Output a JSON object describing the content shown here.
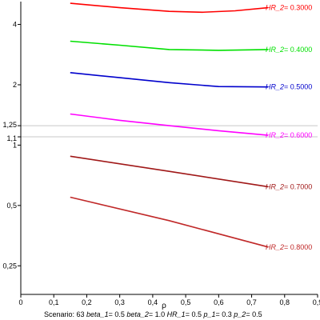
{
  "chart_data": {
    "type": "line",
    "xlabel": "ρ",
    "ylabel": "",
    "xlim": [
      0,
      0.9
    ],
    "ylim_log": [
      0.18,
      5.2
    ],
    "y_scale": "log",
    "x_ticks": [
      0,
      0.1,
      0.2,
      0.3,
      0.4,
      0.5,
      0.6,
      0.7,
      0.8,
      0.9
    ],
    "x_tick_labels": [
      "0",
      "0,1",
      "0,2",
      "0,3",
      "0,4",
      "0,5",
      "0,6",
      "0,7",
      "0,8",
      "0,9"
    ],
    "y_ticks": [
      0.25,
      0.5,
      1,
      1.1,
      1.25,
      2,
      4
    ],
    "y_tick_labels": [
      "0,25",
      "0,5",
      "1",
      "1,1",
      "1,25",
      "2",
      "4"
    ],
    "reference_lines": [
      1.1,
      1.25
    ],
    "series": [
      {
        "name": "HR_2",
        "value_text": "= 0.3000",
        "color": "#ff0000",
        "x": [
          0.15,
          0.3,
          0.45,
          0.55,
          0.65,
          0.75
        ],
        "y": [
          5.1,
          4.85,
          4.65,
          4.6,
          4.68,
          4.85
        ]
      },
      {
        "name": "HR_2",
        "value_text": "= 0.4000",
        "color": "#00e000",
        "x": [
          0.15,
          0.3,
          0.45,
          0.6,
          0.75
        ],
        "y": [
          3.3,
          3.15,
          3.0,
          2.97,
          3.0
        ]
      },
      {
        "name": "HR_2",
        "value_text": "= 0.5000",
        "color": "#0000cc",
        "x": [
          0.15,
          0.3,
          0.45,
          0.6,
          0.75
        ],
        "y": [
          2.3,
          2.17,
          2.05,
          1.96,
          1.95
        ]
      },
      {
        "name": "HR_2",
        "value_text": "= 0.6000",
        "color": "#ff00ff",
        "x": [
          0.15,
          0.3,
          0.45,
          0.6,
          0.75
        ],
        "y": [
          1.43,
          1.33,
          1.25,
          1.18,
          1.12
        ]
      },
      {
        "name": "HR_2",
        "value_text": "= 0.7000",
        "color": "#a01818",
        "x": [
          0.15,
          0.45,
          0.75
        ],
        "y": [
          0.88,
          0.74,
          0.62
        ]
      },
      {
        "name": "HR_2",
        "value_text": "= 0.8000",
        "color": "#c02828",
        "x": [
          0.15,
          0.45,
          0.75
        ],
        "y": [
          0.55,
          0.42,
          0.31
        ]
      }
    ]
  },
  "caption": {
    "scenario": "Scenario: 63",
    "params": [
      {
        "name": "beta_1",
        "value": "= 0.5"
      },
      {
        "name": "beta_2",
        "value": "= 1.0"
      },
      {
        "name": "HR_1",
        "value": "= 0.5"
      },
      {
        "name": "p_1",
        "value": "= 0.3"
      },
      {
        "name": "p_2",
        "value": "= 0.5"
      }
    ]
  }
}
